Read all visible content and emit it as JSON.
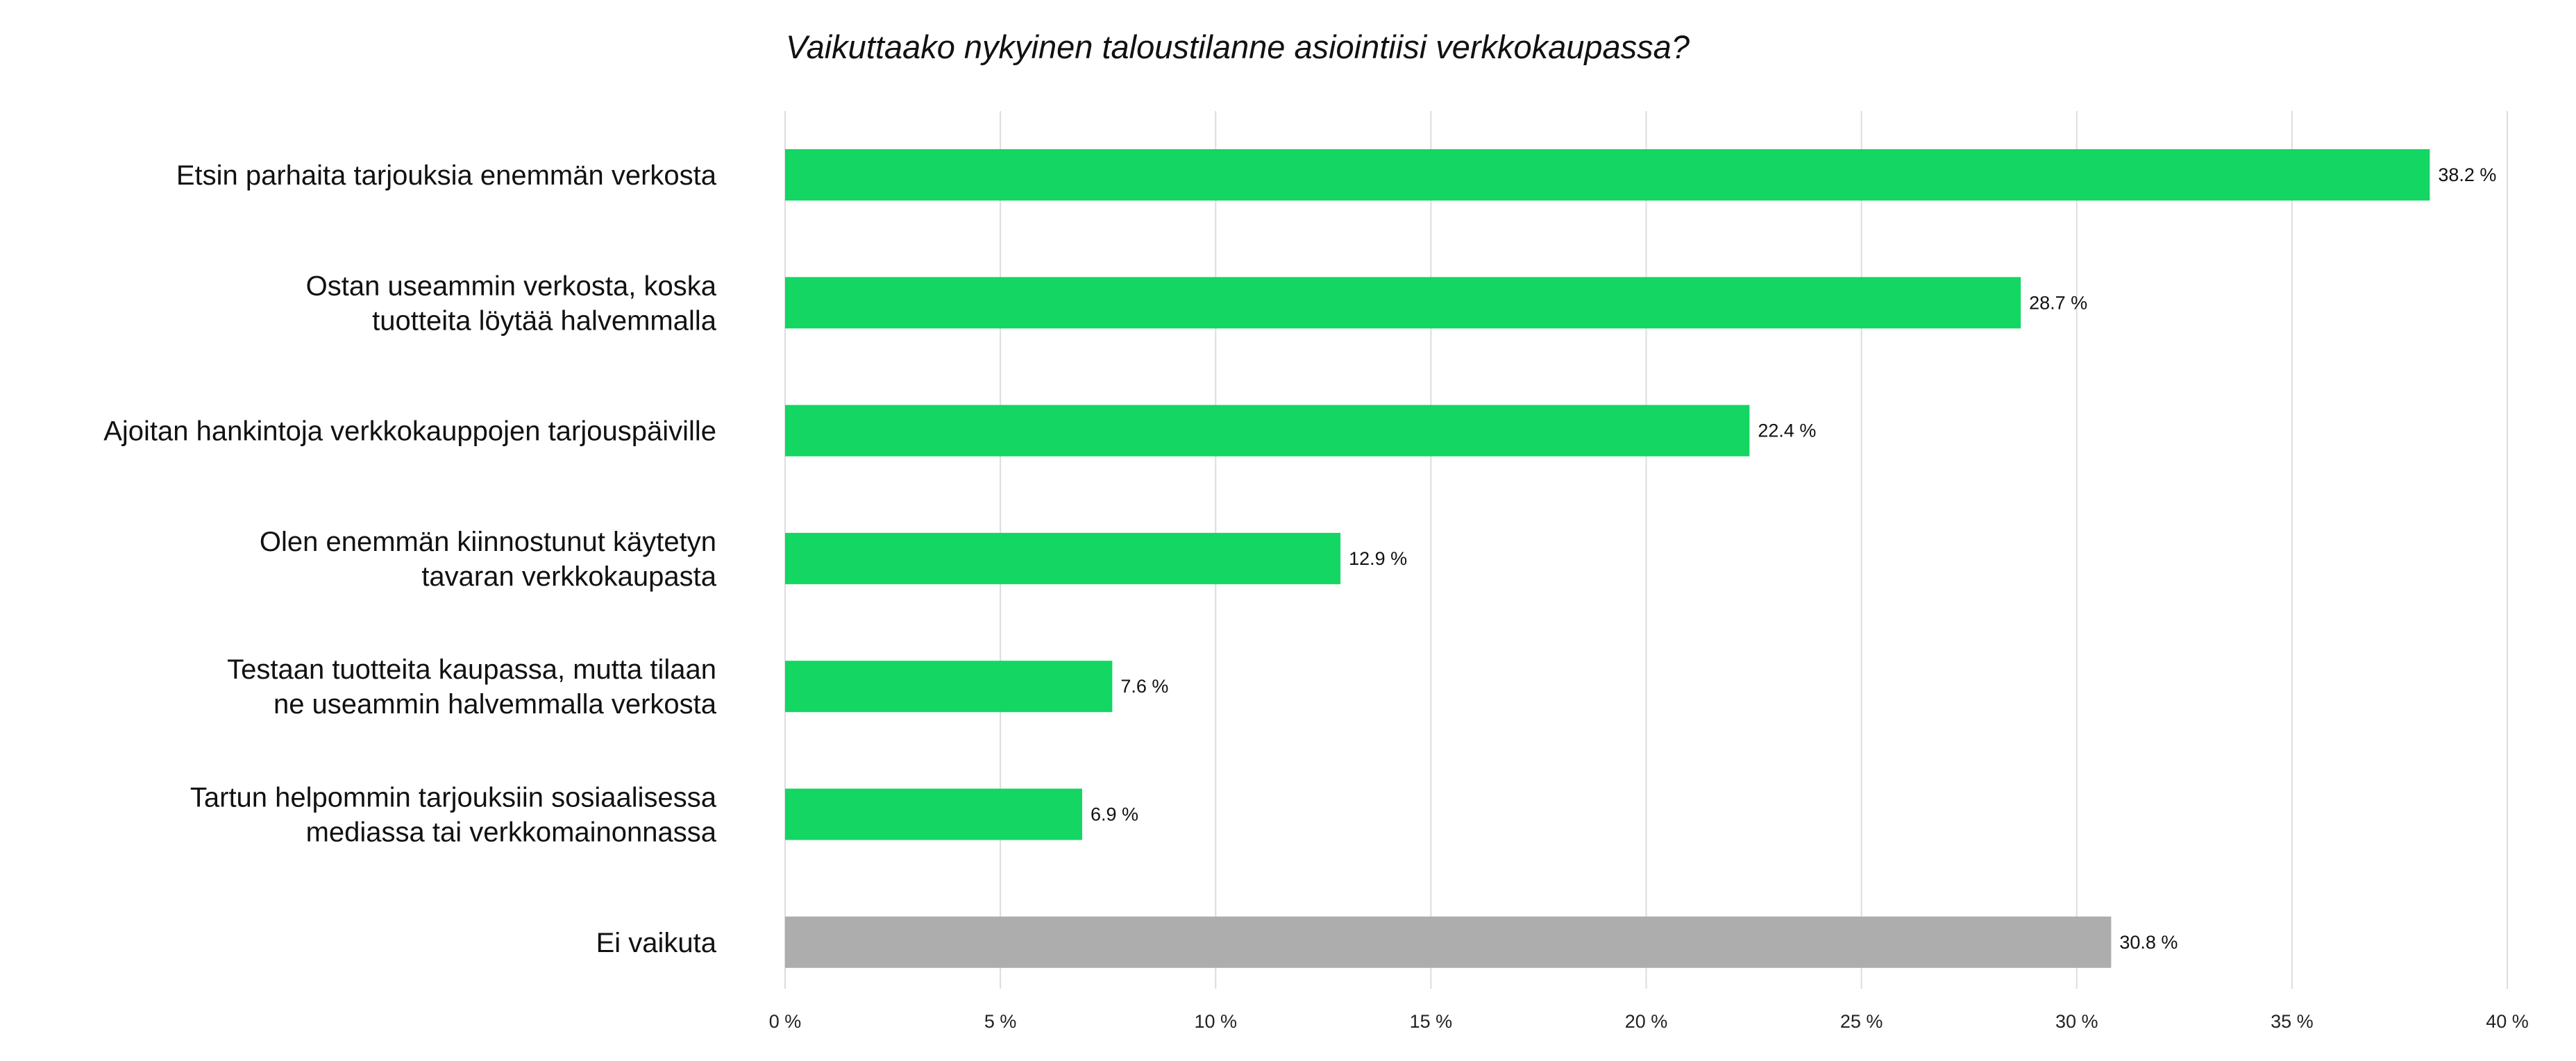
{
  "chart_data": {
    "type": "bar",
    "orientation": "horizontal",
    "title": "Vaikuttaako nykyinen taloustilanne asiointiisi verkkokaupassa?",
    "xlabel": "",
    "ylabel": "",
    "xlim": [
      0,
      40
    ],
    "ticks": [
      0,
      5,
      10,
      15,
      20,
      25,
      30,
      35,
      40
    ],
    "tick_labels": [
      "0 %",
      "5 %",
      "10 %",
      "15 %",
      "20 %",
      "25 %",
      "30 %",
      "35 %",
      "40 %"
    ],
    "grid": true,
    "legend": "none",
    "categories": [
      [
        "Etsin parhaita tarjouksia enemmän verkosta"
      ],
      [
        "Ostan useammin verkosta, koska",
        "tuotteita löytää halvemmalla"
      ],
      [
        "Ajoitan hankintoja verkkokauppojen tarjouspäiville"
      ],
      [
        "Olen enemmän kiinnostunut käytetyn",
        "tavaran verkkokaupasta"
      ],
      [
        "Testaan tuotteita kaupassa, mutta tilaan",
        "ne useammin halvemmalla verkosta"
      ],
      [
        "Tartun helpommin tarjouksiin sosiaalisessa",
        "mediassa tai verkkomainonnassa"
      ],
      [
        "Ei vaikuta"
      ]
    ],
    "values": [
      38.2,
      28.7,
      22.4,
      12.9,
      7.6,
      6.9,
      30.8
    ],
    "value_labels": [
      "38.2 %",
      "28.7 %",
      "22.4 %",
      "12.9 %",
      "7.6 %",
      "6.9 %",
      "30.8 %"
    ],
    "colors": [
      "#13d663",
      "#13d663",
      "#13d663",
      "#13d663",
      "#13d663",
      "#13d663",
      "#adadad"
    ]
  }
}
